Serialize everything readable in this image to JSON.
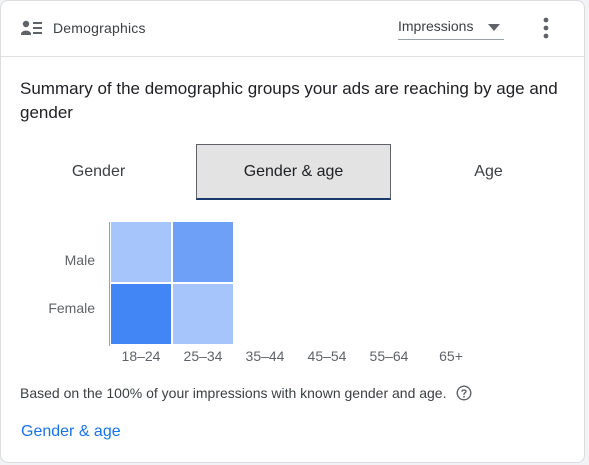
{
  "header": {
    "icon": "demographics-icon",
    "title": "Demographics",
    "metric_select": {
      "selected": "Impressions"
    },
    "more_icon": "more-vert-icon"
  },
  "summary": "Summary of the demographic groups your ads are reaching by age and gender",
  "tabs": [
    {
      "label": "Gender",
      "selected": false
    },
    {
      "label": "Gender & age",
      "selected": true
    },
    {
      "label": "Age",
      "selected": false
    }
  ],
  "chart_data": {
    "type": "heatmap",
    "rows": [
      "Male",
      "Female"
    ],
    "columns": [
      "18–24",
      "25–34",
      "35–44",
      "45–54",
      "55–64",
      "65+"
    ],
    "values": [
      [
        0.25,
        0.5,
        0,
        0,
        0,
        0
      ],
      [
        1.0,
        0.25,
        0,
        0,
        0,
        0
      ]
    ],
    "color_scale": [
      "#a6c5fb",
      "#6ea0f8",
      "#4285f4"
    ]
  },
  "footnote": "Based on the 100% of your impressions with known gender and age.",
  "help_icon": "help-circle-icon",
  "link": "Gender & age"
}
